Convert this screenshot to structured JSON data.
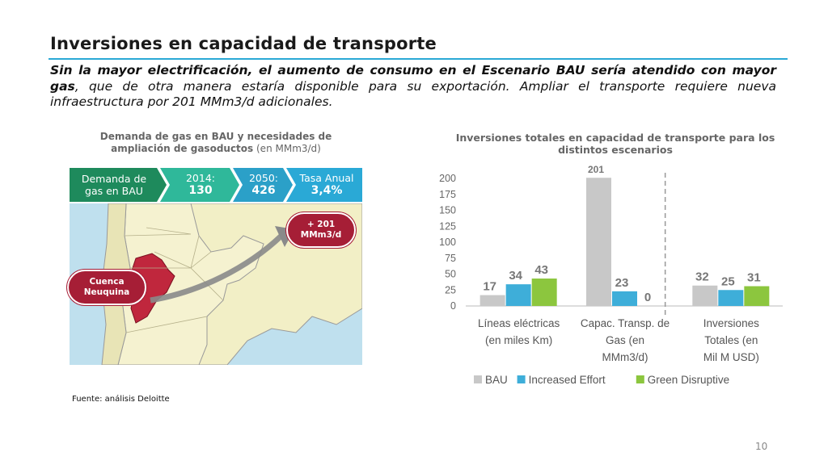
{
  "slide": {
    "title": "Inversiones en capacidad de transporte",
    "subtitle_bold1": "Sin la mayor electrificación, el aumento de consumo en el Escenario BAU sería atendido con mayor gas",
    "subtitle_rest": ", que de otra manera estaría disponible para su exportación. Ampliar el transporte requiere nueva infraestructura por 201 MMm3/d adicionales.",
    "page_number": "10",
    "source": "Fuente: análisis Deloitte"
  },
  "left_panel": {
    "title": "Demanda de gas en BAU y necesidades de ampliación de gasoductos",
    "title_unit": " (en MMm3/d)",
    "chevrons": [
      {
        "line1": "Demanda de",
        "line2": "gas en BAU",
        "color": "#1e8a5c"
      },
      {
        "line1": "2014:",
        "line2": "130",
        "color": "#2fb89a"
      },
      {
        "line1": "2050:",
        "line2": "426",
        "color": "#2ba0c8"
      },
      {
        "line1": "Tasa Anual",
        "line2": "3,4%",
        "color": "#2aa9d6"
      }
    ],
    "map": {
      "increase_line1": "+ 201",
      "increase_line2": "MMm3/d",
      "basin_line1": "Cuenca",
      "basin_line2": "Neuquina",
      "basin_color": "#c0273d",
      "bubble_color": "#a61e36"
    }
  },
  "chart_data": {
    "type": "bar",
    "title": "Inversiones totales en capacidad de transporte para los distintos escenarios",
    "categories": [
      [
        "Líneas eléctricas",
        "(en miles Km)"
      ],
      [
        "Capac. Transp. de",
        "Gas (en",
        "MMm3/d)"
      ],
      [
        "Inversiones",
        "Totales (en",
        "Mil M USD)"
      ]
    ],
    "series": [
      {
        "name": "BAU",
        "values": [
          17,
          201,
          32
        ],
        "color": "#c8c8c8"
      },
      {
        "name": "Increased Effort",
        "values": [
          34,
          23,
          25
        ],
        "color": "#3eaed9"
      },
      {
        "name": "Green Disruptive",
        "values": [
          43,
          0,
          31
        ],
        "color": "#8cc63e"
      }
    ],
    "ylim": [
      0,
      200
    ],
    "yticks": [
      "0",
      "25",
      "50",
      "75",
      "100",
      "125",
      "150",
      "175",
      "200"
    ],
    "grid": false,
    "legend": "bottom"
  }
}
